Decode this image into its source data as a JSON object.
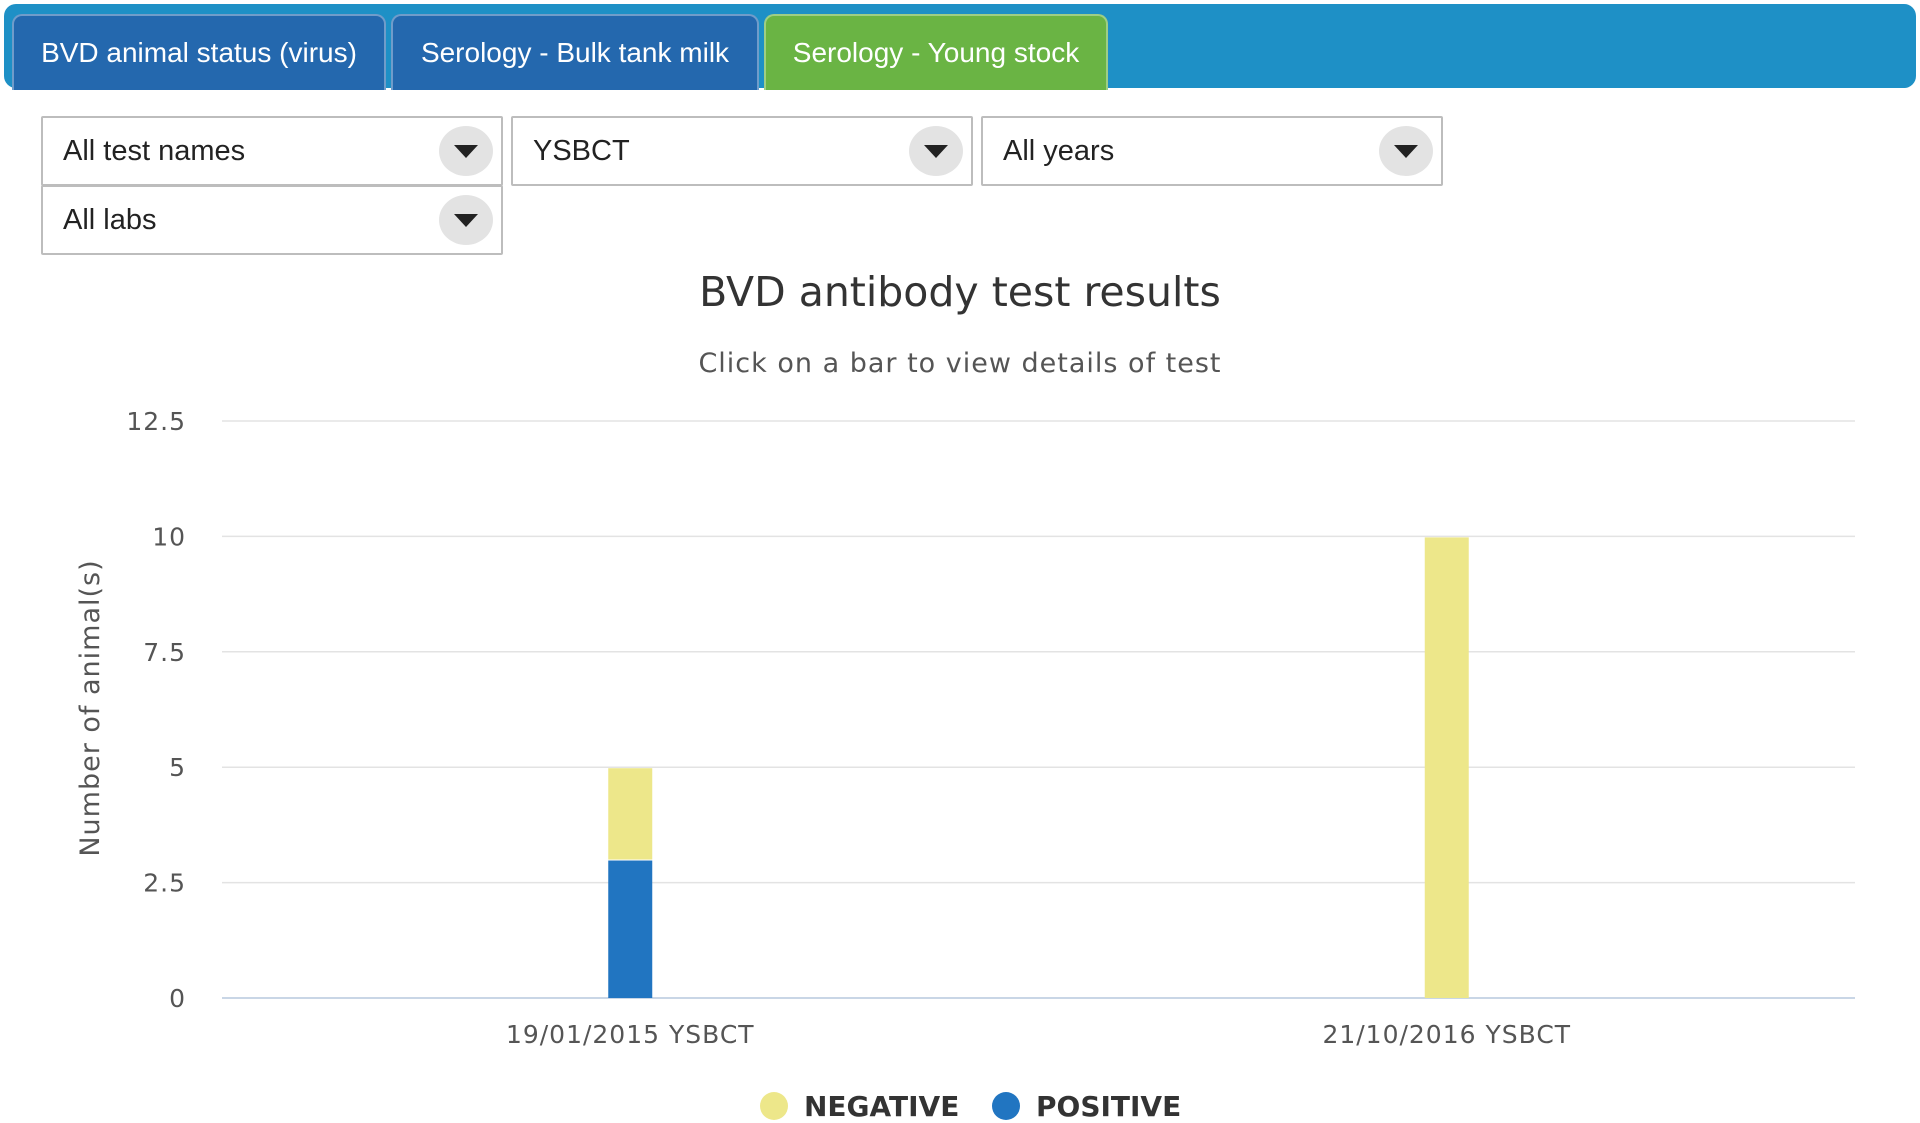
{
  "tabs": [
    {
      "label": "BVD animal status (virus)"
    },
    {
      "label": "Serology - Bulk tank milk"
    },
    {
      "label": "Serology - Young stock"
    }
  ],
  "filters": {
    "test_name": "All test names",
    "test_code": "YSBCT",
    "year": "All years",
    "lab": "All labs"
  },
  "colors": {
    "tab_bar": "#1e90c6",
    "tab_inactive": "#2468ae",
    "tab_active": "#6ab444",
    "negative": "#ede78a",
    "positive": "#2175c1"
  },
  "chart_data": {
    "type": "bar",
    "stacked": true,
    "title": "BVD antibody test results",
    "subtitle": "Click on a bar to view details of test",
    "xlabel": "",
    "ylabel": "Number of animal(s)",
    "ylim": [
      0,
      12.5
    ],
    "yticks": [
      "0",
      "2.5",
      "5",
      "7.5",
      "10",
      "12.5"
    ],
    "categories": [
      "19/01/2015 YSBCT",
      "21/10/2016 YSBCT"
    ],
    "series": [
      {
        "name": "POSITIVE",
        "values": [
          3,
          0
        ]
      },
      {
        "name": "NEGATIVE",
        "values": [
          2,
          10
        ]
      }
    ],
    "grid": true,
    "legend": "bottom-center"
  }
}
